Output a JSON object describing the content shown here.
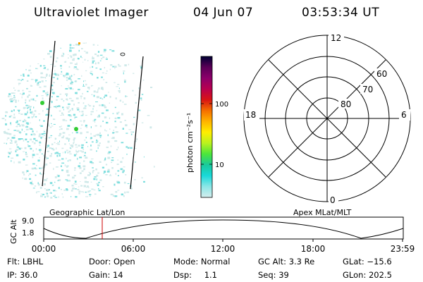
{
  "header": {
    "title": "Ultraviolet Imager",
    "date": "04 Jun 07",
    "time": "03:53:34 UT"
  },
  "colorbar": {
    "label": "photon cm⁻²s⁻¹",
    "ticks": [
      "100",
      "10"
    ],
    "colors": [
      "#000033",
      "#5a0057",
      "#8c006a",
      "#b8004f",
      "#d81414",
      "#f56f00",
      "#ffb300",
      "#ffee00",
      "#b9f21f",
      "#4ce63b",
      "#19c99b",
      "#19d9d9",
      "#8ce6e6",
      "#d5efef"
    ]
  },
  "polar": {
    "mlt_labels": [
      "12",
      "18",
      "6",
      "0"
    ],
    "lat_labels": [
      "60",
      "70",
      "80"
    ]
  },
  "alt_plot": {
    "ylabel": "GC Alt",
    "yticks": [
      "9.0",
      "1.8"
    ],
    "left_title": "Geographic Lat/Lon",
    "right_title": "Apex MLat/MLT",
    "xticks": [
      "00:00",
      "06:00",
      "12:00",
      "18:00",
      "23:59"
    ],
    "marker_time": "03:53"
  },
  "info": {
    "row1": [
      {
        "label": "Flt:",
        "value": "LBHL"
      },
      {
        "label": "Door:",
        "value": "Open"
      },
      {
        "label": "Mode:",
        "value": "Normal"
      },
      {
        "label": "GC Alt:",
        "value": "3.3 Re"
      },
      {
        "label": "GLat:",
        "value": "−15.6"
      }
    ],
    "row2": [
      {
        "label": "IP:",
        "value": "36.0"
      },
      {
        "label": "Gain:",
        "value": "14"
      },
      {
        "label": "Dsp:",
        "value": "1.1"
      },
      {
        "label": "Seq:",
        "value": "39"
      },
      {
        "label": "GLon:",
        "value": "202.5"
      }
    ]
  },
  "colors": {
    "marker": "#cc0000",
    "speckle_main": "#7fdede",
    "speckle_light": "#cfe9e9",
    "speckle_green": "#33cc33"
  }
}
